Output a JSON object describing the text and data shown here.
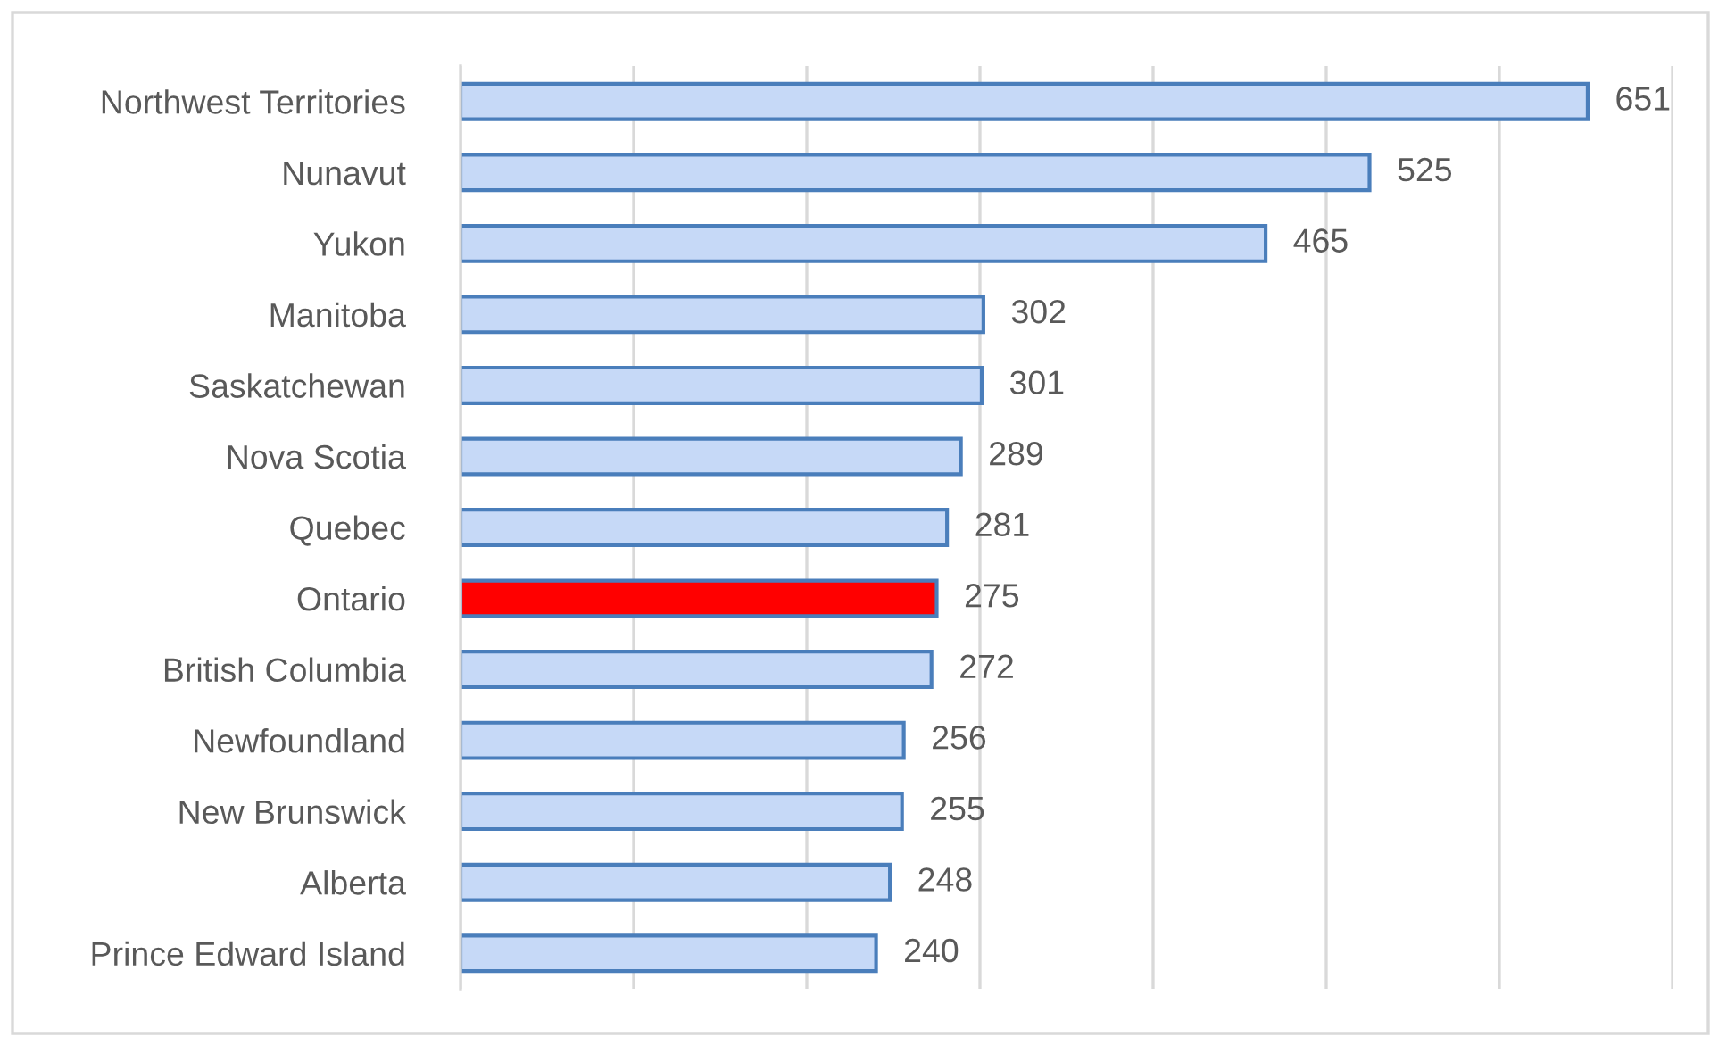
{
  "chart_data": {
    "type": "bar",
    "orientation": "horizontal",
    "categories": [
      "Northwest Territories",
      "Nunavut",
      "Yukon",
      "Manitoba",
      "Saskatchewan",
      "Nova Scotia",
      "Quebec",
      "Ontario",
      "British Columbia",
      "Newfoundland",
      "New Brunswick",
      "Alberta",
      "Prince Edward Island"
    ],
    "values": [
      651,
      525,
      465,
      302,
      301,
      289,
      281,
      275,
      272,
      256,
      255,
      248,
      240
    ],
    "colors": [
      "#c6d9f7",
      "#c6d9f7",
      "#c6d9f7",
      "#c6d9f7",
      "#c6d9f7",
      "#c6d9f7",
      "#c6d9f7",
      "#ff0000",
      "#c6d9f7",
      "#c6d9f7",
      "#c6d9f7",
      "#c6d9f7",
      "#c6d9f7"
    ],
    "data_labels": true,
    "xlim": [
      0,
      700
    ],
    "xticks": [
      0,
      100,
      200,
      300,
      400,
      500,
      600,
      700
    ],
    "grid": "x",
    "tick_labels": "y"
  }
}
